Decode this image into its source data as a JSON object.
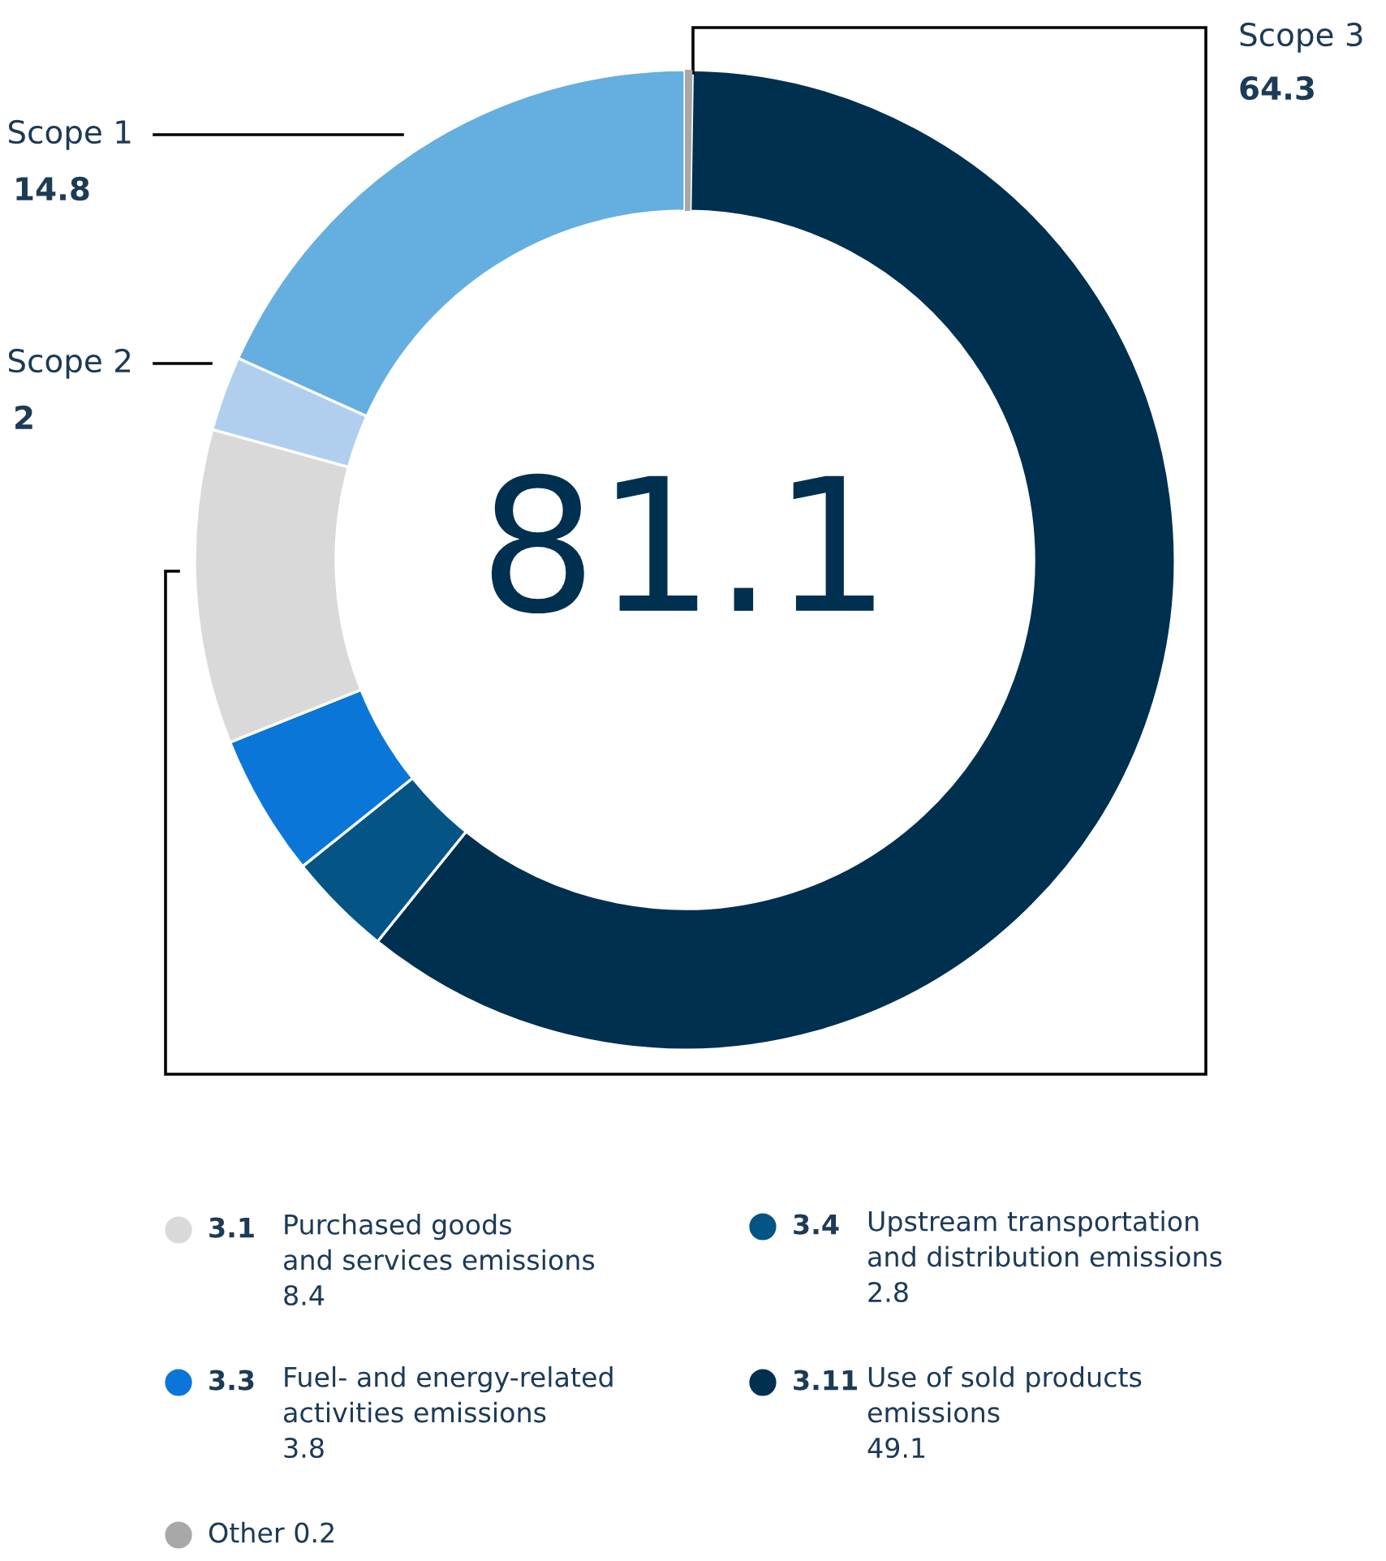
{
  "chart_data": {
    "type": "donut",
    "categories": [
      "Other 0.2",
      "3.11 Use of sold products\nemissions",
      "3.4 Upstream transportation\nand distribution emissions",
      "3.3 Fuel- and energy-related\nactivities emissions",
      "3.1 Purchased goods\nand services emissions",
      "Scope 2",
      "Scope 1"
    ],
    "values": [
      0.2,
      49.1,
      2.8,
      3.8,
      8.4,
      2,
      14.8
    ],
    "colors": [
      "#a8a8a8",
      "#00304f",
      "#045585",
      "#0a76d8",
      "#d9d9d9",
      "#b0cfee",
      "#65aee0"
    ],
    "value_labels": [
      null,
      "49.1",
      "2.8",
      "3.8",
      "8.4",
      "2",
      "14.8"
    ],
    "legend": "bottom",
    "annotations": [
      "81.1",
      "Scope 3",
      "64.3"
    ]
  }
}
